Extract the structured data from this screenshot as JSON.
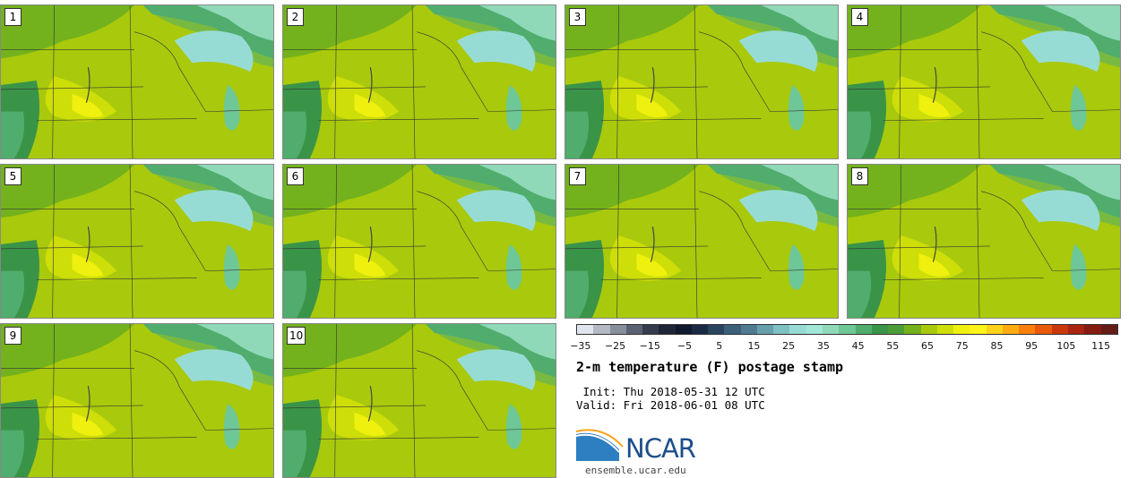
{
  "panels": [
    "1",
    "2",
    "3",
    "4",
    "5",
    "6",
    "7",
    "8",
    "9",
    "10"
  ],
  "colorbar": {
    "colors": [
      "#e0e4ec",
      "#b4b9c3",
      "#878e9c",
      "#5a6172",
      "#343c4e",
      "#1e2638",
      "#0f1a2e",
      "#1a2a44",
      "#2a4460",
      "#3c5f7a",
      "#4f7b92",
      "#67a0ab",
      "#7fc1c2",
      "#97dcd4",
      "#a2e6d6",
      "#8fd9b8",
      "#6ec796",
      "#50ad6d",
      "#3a9448",
      "#4b9c36",
      "#73b21c",
      "#a9c90c",
      "#cdde08",
      "#eff00e",
      "#fff31a",
      "#ffd21a",
      "#ffab12",
      "#fa800c",
      "#e85a0a",
      "#c8380a",
      "#a92411",
      "#841c10",
      "#651c16"
    ],
    "ticks": [
      "−35",
      "−25",
      "−15",
      "−5",
      "5",
      "15",
      "25",
      "35",
      "45",
      "55",
      "65",
      "75",
      "85",
      "95",
      "105",
      "115"
    ],
    "tick_values": [
      -35,
      -25,
      -15,
      -5,
      5,
      15,
      25,
      35,
      45,
      55,
      65,
      75,
      85,
      95,
      105,
      115
    ],
    "min": -36.25,
    "max": 120
  },
  "title": "2-m temperature (F) postage stamp",
  "init": " Init: Thu 2018-05-31 12 UTC",
  "valid": "Valid: Fri 2018-06-01 08 UTC",
  "logo": {
    "text": "NCAR",
    "color": "#1b4f8a",
    "swoosh_color": "#2d7fc1"
  },
  "website": "ensemble.ucar.edu"
}
